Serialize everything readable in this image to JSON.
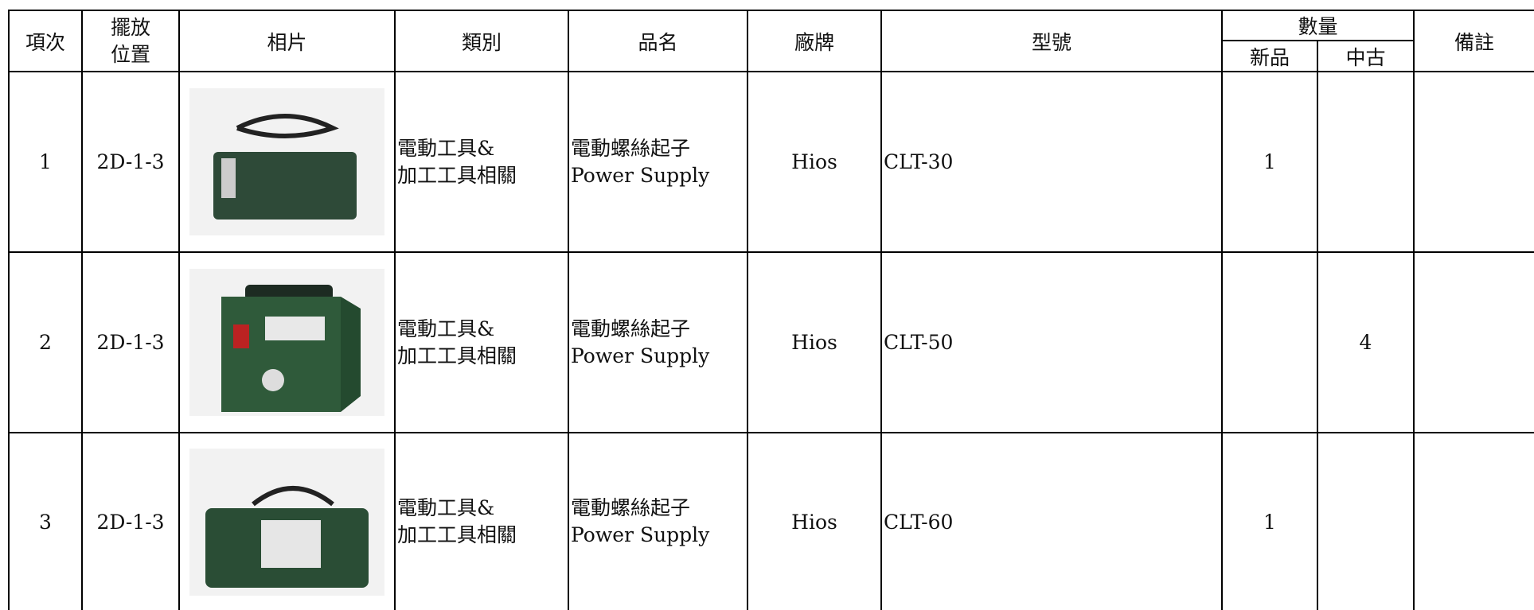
{
  "header": {
    "no": "項次",
    "location": [
      "擺放",
      "位置"
    ],
    "photo": "相片",
    "category": "類別",
    "name": "品名",
    "brand": "廠牌",
    "model": "型號",
    "quantity": "數量",
    "new": "新品",
    "used": "中古",
    "remarks": "備註"
  },
  "rows": [
    {
      "no": 1,
      "location": "2D-1-3",
      "category": [
        "電動工具&",
        "加工工具相關"
      ],
      "name": [
        "電動螺絲起子",
        "Power Supply"
      ],
      "brand": "Hios",
      "model": "CLT-30",
      "new": 1
    },
    {
      "no": 2,
      "location": "2D-1-3",
      "category": [
        "電動工具&",
        "加工工具相關"
      ],
      "name": [
        "電動螺絲起子",
        "Power Supply"
      ],
      "brand": "Hios",
      "model": "CLT-50",
      "used": 4
    },
    {
      "no": 3,
      "location": "2D-1-3",
      "category": [
        "電動工具&",
        "加工工具相關"
      ],
      "name": [
        "電動螺絲起子",
        "Power Supply"
      ],
      "brand": "Hios",
      "model": "CLT-60",
      "new": 1
    }
  ]
}
